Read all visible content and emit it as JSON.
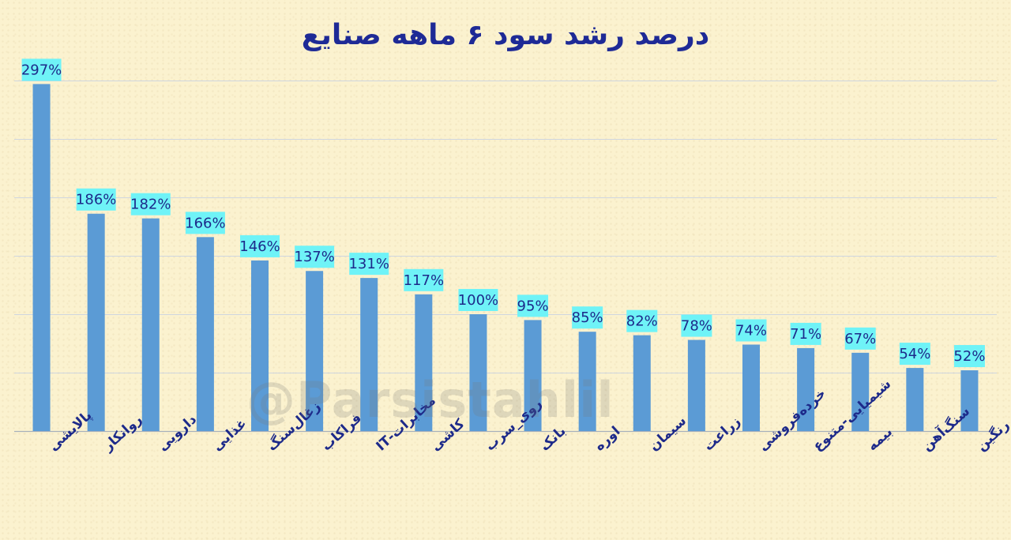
{
  "watermark": "@Parsistahlil",
  "colors": {
    "bar": "#5b9bd5",
    "label_bg": "#6ff3f7",
    "label_text": "#1d2a8a",
    "title": "#1e2a96",
    "category_text": "#1d2a8a",
    "grid": "#cfd6df",
    "axis": "#a8b0bb"
  },
  "chart_data": {
    "type": "bar",
    "title": "درصد رشد سود ۶ ماهه صنایع",
    "xlabel": "",
    "ylabel": "",
    "ylim": [
      0,
      300
    ],
    "grid": true,
    "legend": "none",
    "categories": [
      "پالایشی",
      "روانکار",
      "دارویی",
      "غذایی",
      "زغال‌سنگ",
      "فراکاب",
      "مخابرات-IT",
      "کاشی",
      "روی_سرب",
      "بانک",
      "اوره",
      "سیمان",
      "زراعت",
      "خرده‌فروشی",
      "شیمیایی-متنوع",
      "بیمه",
      "سنگ‌آهن",
      "رنگین"
    ],
    "values": [
      297,
      186,
      182,
      166,
      146,
      137,
      131,
      117,
      100,
      95,
      85,
      82,
      78,
      74,
      71,
      67,
      54,
      52
    ],
    "data_labels": [
      "297%",
      "186%",
      "182%",
      "166%",
      "146%",
      "137%",
      "131%",
      "117%",
      "100%",
      "95%",
      "85%",
      "82%",
      "78%",
      "74%",
      "71%",
      "67%",
      "54%",
      "52%"
    ]
  }
}
